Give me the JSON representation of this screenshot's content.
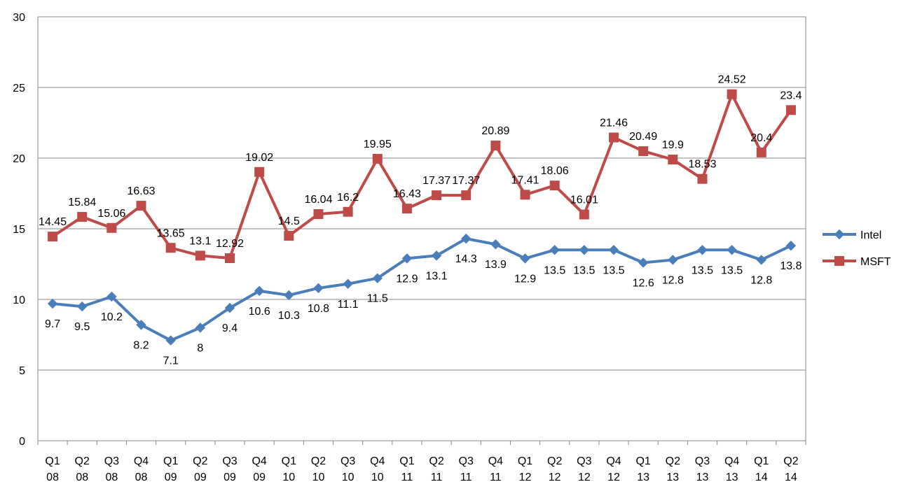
{
  "chart_data": {
    "type": "line",
    "title": "",
    "xlabel": "",
    "ylabel": "",
    "ylim": [
      0,
      30
    ],
    "y_ticks": [
      0,
      5,
      10,
      15,
      20,
      25,
      30
    ],
    "grid": true,
    "legend_position": "right",
    "categories": [
      "Q1 08",
      "Q2 08",
      "Q3 08",
      "Q4 08",
      "Q1 09",
      "Q2 09",
      "Q3 09",
      "Q4 09",
      "Q1 10",
      "Q2 10",
      "Q3 10",
      "Q4 10",
      "Q1 11",
      "Q2 11",
      "Q3 11",
      "Q4 11",
      "Q1 12",
      "Q2 12",
      "Q3 12",
      "Q4 12",
      "Q1 13",
      "Q2 13",
      "Q3 13",
      "Q4 13",
      "Q1 14",
      "Q2 14"
    ],
    "category_lines": [
      [
        "Q1",
        "08"
      ],
      [
        "Q2",
        "08"
      ],
      [
        "Q3",
        "08"
      ],
      [
        "Q4",
        "08"
      ],
      [
        "Q1",
        "09"
      ],
      [
        "Q2",
        "09"
      ],
      [
        "Q3",
        "09"
      ],
      [
        "Q4",
        "09"
      ],
      [
        "Q1",
        "10"
      ],
      [
        "Q2",
        "10"
      ],
      [
        "Q3",
        "10"
      ],
      [
        "Q4",
        "10"
      ],
      [
        "Q1",
        "11"
      ],
      [
        "Q2",
        "11"
      ],
      [
        "Q3",
        "11"
      ],
      [
        "Q4",
        "11"
      ],
      [
        "Q1",
        "12"
      ],
      [
        "Q2",
        "12"
      ],
      [
        "Q3",
        "12"
      ],
      [
        "Q4",
        "12"
      ],
      [
        "Q1",
        "13"
      ],
      [
        "Q2",
        "13"
      ],
      [
        "Q3",
        "13"
      ],
      [
        "Q4",
        "13"
      ],
      [
        "Q1",
        "14"
      ],
      [
        "Q2",
        "14"
      ]
    ],
    "series": [
      {
        "name": "Intel",
        "color": "#4a7ebb",
        "marker": "diamond",
        "label_position": "below",
        "values": [
          9.7,
          9.5,
          10.2,
          8.2,
          7.1,
          8,
          9.4,
          10.6,
          10.3,
          10.8,
          11.1,
          11.5,
          12.9,
          13.1,
          14.3,
          13.9,
          12.9,
          13.5,
          13.5,
          13.5,
          12.6,
          12.8,
          13.5,
          13.5,
          12.8,
          13.8
        ]
      },
      {
        "name": "MSFT",
        "color": "#be4b48",
        "marker": "square",
        "label_position": "above",
        "values": [
          14.45,
          15.84,
          15.06,
          16.63,
          13.65,
          13.1,
          12.92,
          19.02,
          14.5,
          16.04,
          16.2,
          19.95,
          16.43,
          17.37,
          17.37,
          20.89,
          17.41,
          18.06,
          16.01,
          21.46,
          20.49,
          19.9,
          18.53,
          24.52,
          20.4,
          23.4
        ]
      }
    ]
  }
}
